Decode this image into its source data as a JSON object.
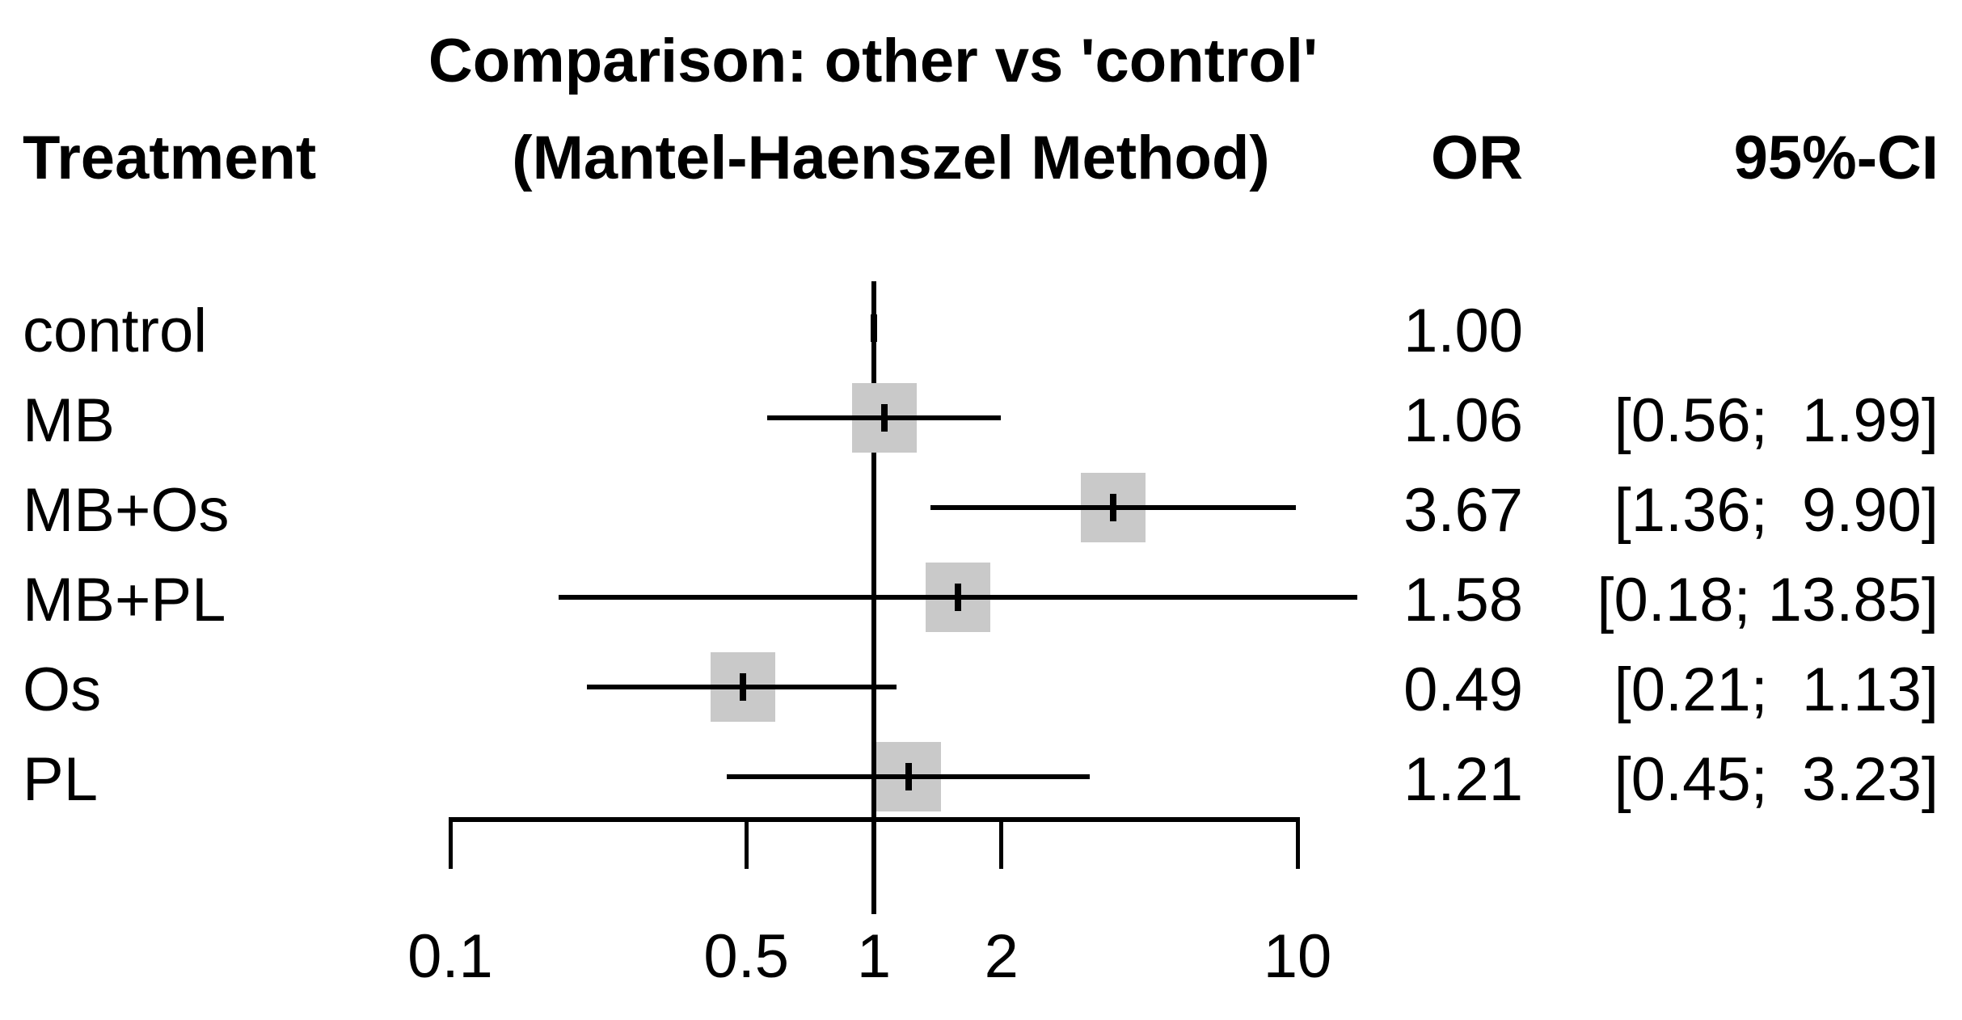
{
  "title": "Comparison: other vs 'control'",
  "subtitle": "(Mantel-Haenszel Method)",
  "columns": {
    "treatment": "Treatment",
    "or": "OR",
    "ci": "95%-CI"
  },
  "colors": {
    "background": "#ffffff",
    "text": "#000000",
    "line": "#000000",
    "square_fill": "#c9c9c9"
  },
  "chart_data": {
    "type": "forest",
    "title": "Comparison: other vs 'control'",
    "subtitle": "(Mantel-Haenszel Method)",
    "effect_measure": "OR",
    "x_axis": {
      "scale": "log",
      "range": [
        0.1,
        10
      ],
      "reference_line": 1,
      "ticks": [
        0.1,
        0.5,
        1,
        2,
        10
      ],
      "tick_labels": [
        "0.1",
        "0.5",
        "1",
        "2",
        "10"
      ],
      "grid": false
    },
    "rows": [
      {
        "treatment": "control",
        "or": 1.0,
        "or_label": "1.00",
        "ci_low": null,
        "ci_high": null,
        "ci_label": ""
      },
      {
        "treatment": "MB",
        "or": 1.06,
        "or_label": "1.06",
        "ci_low": 0.56,
        "ci_high": 1.99,
        "ci_label": "[0.56;  1.99]"
      },
      {
        "treatment": "MB+Os",
        "or": 3.67,
        "or_label": "3.67",
        "ci_low": 1.36,
        "ci_high": 9.9,
        "ci_label": "[1.36;  9.90]"
      },
      {
        "treatment": "MB+PL",
        "or": 1.58,
        "or_label": "1.58",
        "ci_low": 0.18,
        "ci_high": 13.85,
        "ci_label": "[0.18; 13.85]"
      },
      {
        "treatment": "Os",
        "or": 0.49,
        "or_label": "0.49",
        "ci_low": 0.21,
        "ci_high": 1.13,
        "ci_label": "[0.21;  1.13]"
      },
      {
        "treatment": "PL",
        "or": 1.21,
        "or_label": "1.21",
        "ci_low": 0.45,
        "ci_high": 3.23,
        "ci_label": "[0.45;  3.23]"
      }
    ]
  }
}
